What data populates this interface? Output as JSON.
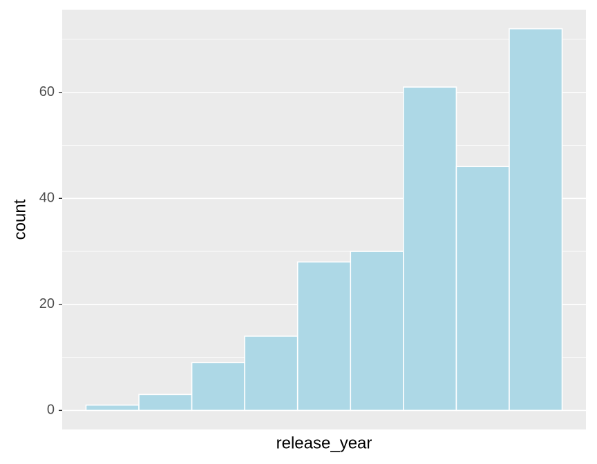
{
  "chart_data": {
    "type": "bar",
    "x_label": "release_year",
    "y_label": "count",
    "categories": [
      null,
      null,
      null,
      null,
      null,
      null,
      null,
      null,
      null
    ],
    "values": [
      1,
      3,
      9,
      14,
      28,
      30,
      61,
      46,
      72
    ],
    "color": "#add8e6",
    "ylim": [
      -3.6,
      75.6
    ],
    "yticks": [
      0,
      20,
      40,
      60
    ],
    "minor_yticks": [
      10,
      30,
      50,
      70
    ],
    "grid": true
  }
}
